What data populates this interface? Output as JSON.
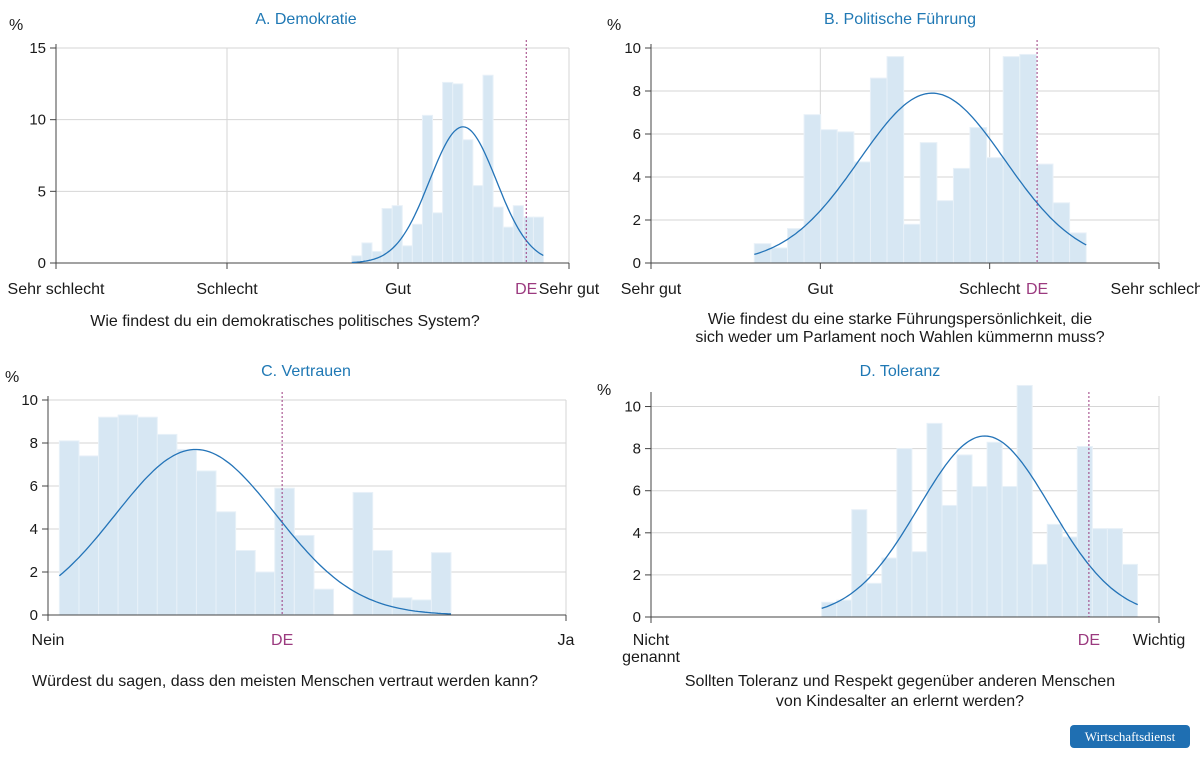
{
  "colors": {
    "bar": "#d7e7f3",
    "bar_edge": "#e8f1f8",
    "curve": "#2474b8",
    "title": "#1f78b4",
    "de": "#9b3a7f",
    "grid": "#d6d6d6",
    "axis": "#444444",
    "text": "#1a1a1a"
  },
  "badge": "Wirtschaftsdienst",
  "chart_data": [
    {
      "type": "bar",
      "title": "A. Demokratie",
      "unit_label": "%",
      "ylim": [
        0,
        15
      ],
      "yticks": [
        0,
        5,
        10,
        15
      ],
      "xlim": [
        0,
        30
      ],
      "xticks": [
        {
          "pos": 0,
          "label": "Sehr schlecht"
        },
        {
          "pos": 10,
          "label": "Schlecht"
        },
        {
          "pos": 20,
          "label": "Gut"
        },
        {
          "pos": 30,
          "label": "Sehr gut"
        }
      ],
      "de": {
        "pos": 27.5,
        "label": "DE"
      },
      "bin_start": 17.3,
      "bin_width": 0.59,
      "values": [
        0.5,
        1.4,
        0.8,
        3.8,
        4.0,
        1.2,
        2.7,
        10.3,
        3.5,
        12.6,
        12.5,
        8.6,
        5.4,
        13.1,
        3.9,
        2.5,
        4.0,
        3.2,
        3.2
      ],
      "curve": {
        "mean": 23.8,
        "sd": 1.95,
        "peak": 9.5,
        "from": 17.3,
        "to": 28.5
      },
      "question": "Wie findest du ein demokratisches politisches System?"
    },
    {
      "type": "bar",
      "title": "B. Politische Führung",
      "unit_label": "%",
      "ylim": [
        0,
        10
      ],
      "yticks": [
        0,
        2,
        4,
        6,
        8,
        10
      ],
      "xlim": [
        0,
        30
      ],
      "xticks": [
        {
          "pos": 0,
          "label": "Sehr gut"
        },
        {
          "pos": 10,
          "label": "Gut"
        },
        {
          "pos": 20,
          "label": "Schlecht"
        },
        {
          "pos": 30,
          "label": "Sehr schlecht"
        }
      ],
      "de": {
        "pos": 22.8,
        "label": "DE"
      },
      "bin_start": 6.1,
      "bin_width": 0.98,
      "values": [
        0.9,
        0.7,
        1.6,
        6.9,
        6.2,
        6.1,
        4.7,
        8.6,
        9.6,
        1.8,
        5.6,
        2.9,
        4.4,
        6.3,
        4.9,
        9.6,
        9.7,
        4.6,
        2.8,
        1.4
      ],
      "curve": {
        "mean": 16.6,
        "sd": 4.3,
        "peak": 7.9,
        "from": 6.1,
        "to": 25.7
      },
      "question": [
        "Wie findest du eine starke Führungspersönlichkeit, die",
        "sich weder um Parlament noch Wahlen kümmernn muss?"
      ]
    },
    {
      "type": "bar",
      "title": "C. Vertrauen",
      "unit_label": "%",
      "ylim": [
        0,
        10
      ],
      "yticks": [
        0,
        2,
        4,
        6,
        8,
        10
      ],
      "xlim": [
        0,
        1
      ],
      "xticks": [
        {
          "pos": 0,
          "label": "Nein"
        },
        {
          "pos": 1,
          "label": "Ja"
        }
      ],
      "de": {
        "pos": 0.452,
        "label": "DE"
      },
      "bin_start": 0.022,
      "bin_width": 0.0378,
      "values": [
        8.1,
        7.4,
        9.2,
        9.3,
        9.2,
        8.4,
        7.7,
        6.7,
        4.8,
        3.0,
        2.0,
        5.9,
        3.7,
        1.2,
        0,
        5.7,
        3.0,
        0.8,
        0.7,
        2.9
      ],
      "curve": {
        "mean": 0.285,
        "sd": 0.155,
        "peak": 7.7,
        "from": 0.022,
        "to": 0.778
      },
      "question": "Würdest du sagen, dass den meisten Menschen vertraut werden kann?"
    },
    {
      "type": "bar",
      "title": "D. Toleranz",
      "unit_label": "%",
      "ylim": [
        0,
        10.5
      ],
      "yticks": [
        0,
        2,
        4,
        6,
        8,
        10
      ],
      "xlim": [
        0,
        1
      ],
      "xticks": [
        {
          "pos": 0,
          "label": [
            "Nicht",
            "genannt"
          ]
        },
        {
          "pos": 1,
          "label": "Wichtig"
        }
      ],
      "de": {
        "pos": 0.862,
        "label": "DE"
      },
      "bin_start": 0.336,
      "bin_width": 0.0296,
      "values": [
        0.7,
        0.8,
        5.1,
        1.6,
        2.8,
        8.0,
        3.1,
        9.2,
        5.3,
        7.7,
        6.2,
        8.3,
        6.2,
        11.0,
        2.5,
        4.4,
        3.8,
        8.1,
        4.2,
        4.2,
        2.5
      ],
      "curve": {
        "mean": 0.657,
        "sd": 0.13,
        "peak": 8.6,
        "from": 0.336,
        "to": 0.958
      },
      "question": [
        "Sollten Toleranz und Respekt gegenüber anderen Menschen",
        "von Kindesalter an erlernt werden?"
      ]
    }
  ]
}
